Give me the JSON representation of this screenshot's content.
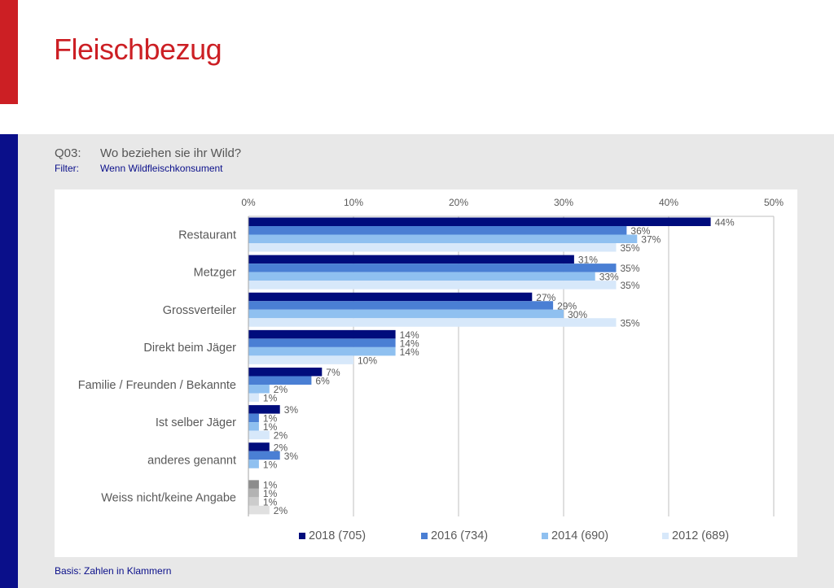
{
  "page": {
    "title": "Fleischbezug",
    "question_label": "Q03:",
    "question_text": "Wo beziehen sie ihr Wild?",
    "filter_label": "Filter:",
    "filter_text": "Wenn Wildfleischkonsument",
    "basis": "Basis: Zahlen in Klammern"
  },
  "colors": {
    "red_accent": "#cc1f24",
    "blue_accent": "#0a0f8a",
    "panel_grey": "#e8e8e8"
  },
  "chart_data": {
    "type": "bar",
    "orientation": "horizontal",
    "title": "",
    "xlabel": "",
    "ylabel": "",
    "xlim": [
      0,
      50
    ],
    "x_ticks": [
      "0%",
      "10%",
      "20%",
      "30%",
      "40%",
      "50%"
    ],
    "x_tick_values": [
      0,
      10,
      20,
      30,
      40,
      50
    ],
    "grid": true,
    "legend_position": "bottom",
    "value_suffix": "%",
    "categories": [
      "Restaurant",
      "Metzger",
      "Grossverteiler",
      "Direkt beim Jäger",
      "Familie / Freunden / Bekannte",
      "Ist selber Jäger",
      "anderes genannt",
      "Weiss nicht/keine Angabe"
    ],
    "series": [
      {
        "name": "2018 (705)",
        "color": "#000c7c",
        "values": [
          44,
          31,
          27,
          14,
          7,
          3,
          2,
          1
        ],
        "gray_color": "#8c8c8c"
      },
      {
        "name": "2016 (734)",
        "color": "#4a7fd4",
        "values": [
          36,
          35,
          29,
          14,
          6,
          1,
          3,
          1
        ],
        "gray_color": "#b3b3b3"
      },
      {
        "name": "2014 (690)",
        "color": "#8fc0f0",
        "values": [
          37,
          33,
          30,
          14,
          2,
          1,
          1,
          1
        ],
        "gray_color": "#cccccc"
      },
      {
        "name": "2012 (689)",
        "color": "#d7e8fa",
        "values": [
          35,
          35,
          35,
          10,
          1,
          2,
          null,
          2
        ],
        "gray_color": "#e0e0e0"
      }
    ]
  }
}
